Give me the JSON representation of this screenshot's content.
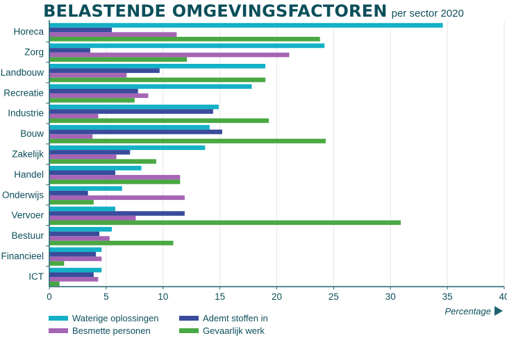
{
  "title": "BELASTENDE OMGEVINGSFACTOREN",
  "subtitle": "per sector 2020",
  "colors": {
    "text": "#0c4f5b",
    "axis": "#1e6470",
    "gridline": "#e6e6e6"
  },
  "chart_data": {
    "type": "bar",
    "orientation": "horizontal",
    "categories": [
      "Horeca",
      "Zorg",
      "Landbouw",
      "Recreatie",
      "Industrie",
      "Bouw",
      "Zakelijk",
      "Handel",
      "Onderwijs",
      "Vervoer",
      "Bestuur",
      "Financieel",
      "ICT"
    ],
    "series": [
      {
        "name": "Waterige oplossingen",
        "color": "#14b1c6",
        "values": [
          34.6,
          24.2,
          19.0,
          17.8,
          14.9,
          14.1,
          13.7,
          8.1,
          6.4,
          5.8,
          5.5,
          4.6,
          4.6
        ]
      },
      {
        "name": "Ademt stoffen in",
        "color": "#3a4b9c",
        "values": [
          5.5,
          3.6,
          9.7,
          7.8,
          14.4,
          15.2,
          7.1,
          5.8,
          3.4,
          11.9,
          4.4,
          4.1,
          3.9
        ]
      },
      {
        "name": "Besmette personen",
        "color": "#a565b4",
        "values": [
          11.2,
          21.1,
          6.8,
          8.7,
          4.3,
          3.8,
          5.9,
          11.5,
          11.9,
          7.6,
          5.3,
          4.6,
          4.3
        ]
      },
      {
        "name": "Gevaarlijk werk",
        "color": "#4aa844",
        "values": [
          23.8,
          12.1,
          19.0,
          7.5,
          19.3,
          24.3,
          9.4,
          11.5,
          3.9,
          30.9,
          10.9,
          1.3,
          0.9
        ]
      }
    ],
    "xlim": [
      0,
      40
    ],
    "xticks": [
      0,
      5,
      10,
      15,
      20,
      25,
      30,
      35,
      40
    ],
    "xlabel": "Percentage",
    "grid": true,
    "legend": "bottom-left",
    "legend_order": [
      0,
      1,
      2,
      3
    ]
  }
}
